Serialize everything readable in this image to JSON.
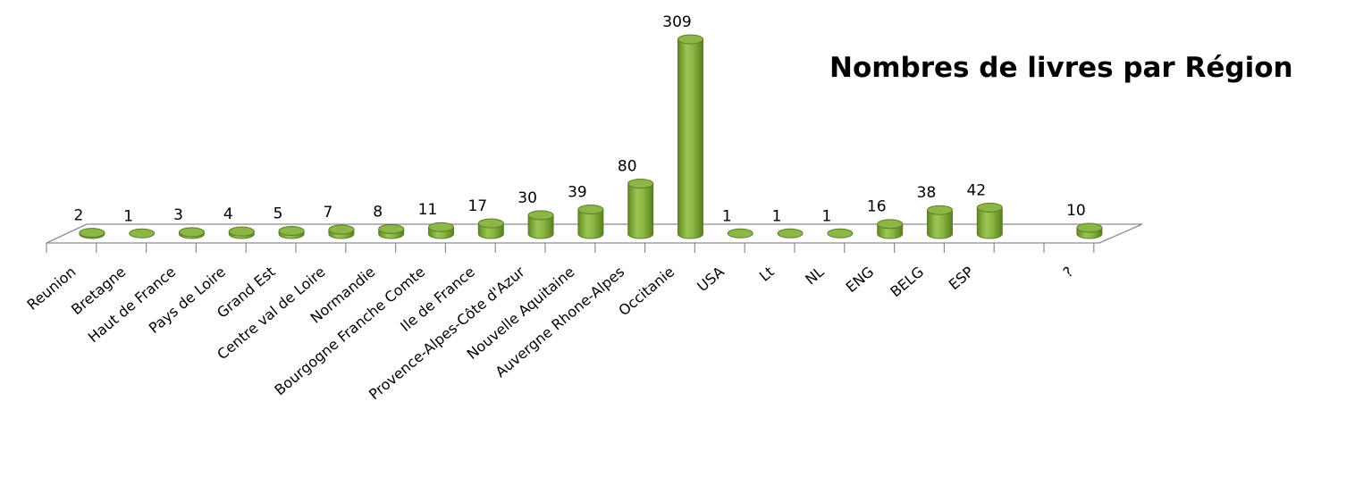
{
  "chart_data": {
    "type": "bar",
    "style": "3d-cylinder",
    "title": "Nombres de livres par Région",
    "categories": [
      "Reunion",
      "Bretagne",
      "Haut de France",
      "Pays de Loire",
      "Grand Est",
      "Centre val de Loire",
      "Normandie",
      "Bourgogne Franche Comte",
      "Ile de France",
      "Provence-Alpes-Côte d'Azur",
      "Nouvelle Aquitaine",
      "Auvergne Rhone-Alpes",
      "Occitanie",
      "USA",
      "Lt",
      "NL",
      "ENG",
      "BELG",
      "ESP",
      "",
      "?"
    ],
    "values": [
      2,
      1,
      3,
      4,
      5,
      7,
      8,
      11,
      17,
      30,
      39,
      80,
      309,
      1,
      1,
      1,
      16,
      38,
      42,
      null,
      10
    ],
    "data_labels": [
      "2",
      "1",
      "3",
      "4",
      "5",
      "7",
      "8",
      "11",
      "17",
      "30",
      "39",
      "80",
      "309",
      "1",
      "1",
      "1",
      "16",
      "38",
      "42",
      "",
      "10"
    ],
    "bar_color": "#8db648",
    "bar_edge_color": "#5c7d27",
    "ylim": [
      0,
      309
    ],
    "grid": false,
    "legend": "none"
  }
}
